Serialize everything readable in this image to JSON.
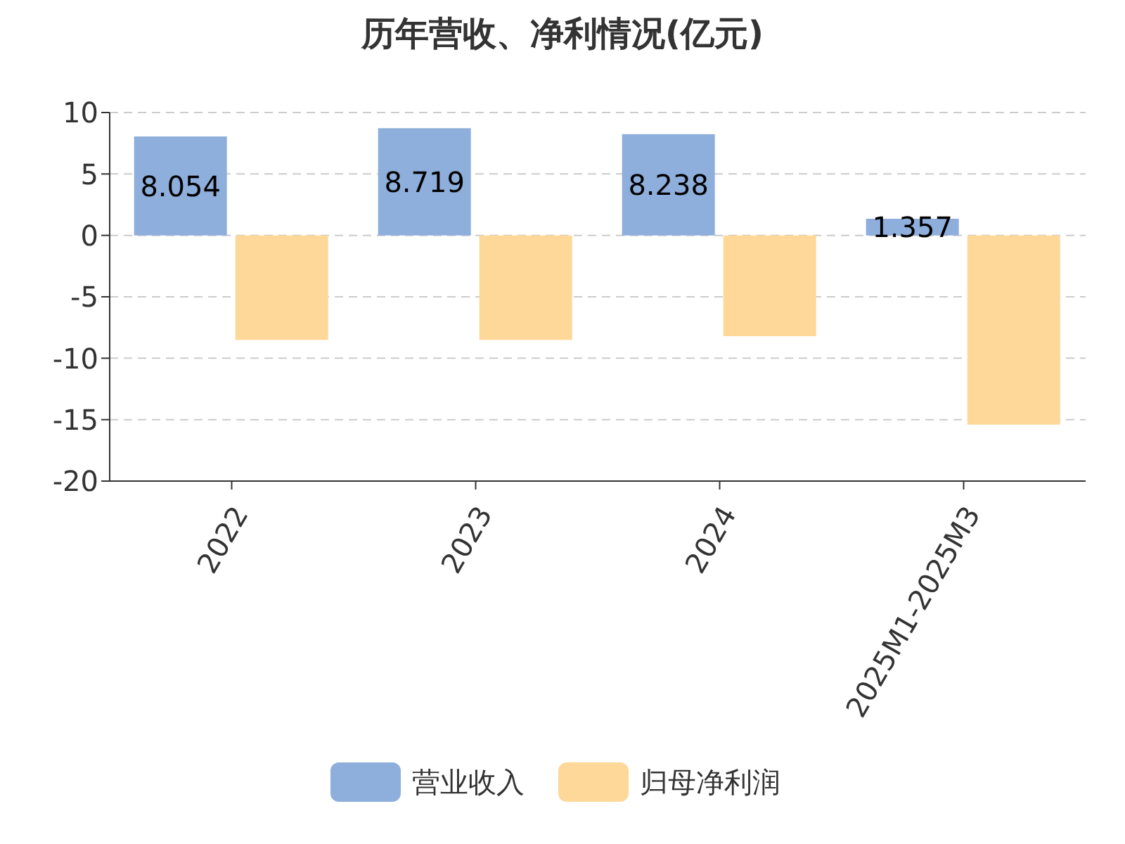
{
  "chart_data": {
    "type": "bar",
    "title": "历年营收、净利情况(亿元)",
    "categories": [
      "2022",
      "2023",
      "2024",
      "2025M1-2025M3"
    ],
    "series": [
      {
        "name": "营业收入",
        "color": "#8eaedb",
        "values": [
          8.054,
          8.719,
          8.238,
          1.357
        ],
        "value_labels": [
          "8.054",
          "8.719",
          "8.238",
          "1.357"
        ]
      },
      {
        "name": "归母净利润",
        "color": "#fed898",
        "values": [
          -8.5,
          -8.5,
          -8.2,
          -15.4
        ]
      }
    ],
    "ylim": [
      -20,
      10
    ],
    "yticks": [
      -20,
      -15,
      -10,
      -5,
      0,
      5,
      10
    ],
    "grid": "y",
    "legend": "bottom"
  }
}
